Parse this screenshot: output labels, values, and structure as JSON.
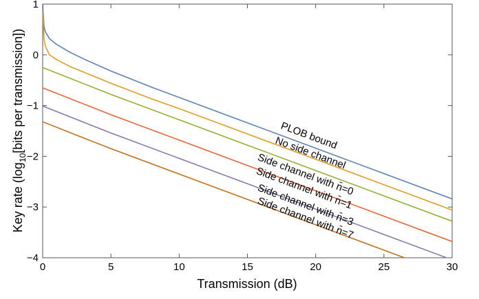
{
  "chart_data": {
    "type": "line",
    "title": "",
    "xlabel": "Transmission (dB)",
    "ylabel": "Key rate (log",
    "ylabel_sub": "10",
    "ylabel_tail": "[bits per transmission])",
    "xlim": [
      0,
      30
    ],
    "ylim": [
      -4,
      1
    ],
    "x_ticks": [
      0,
      5,
      10,
      15,
      20,
      25,
      30
    ],
    "x_tick_labels": [
      "0",
      "5",
      "10",
      "15",
      "20",
      "25",
      "30"
    ],
    "y_ticks": [
      -4,
      -3,
      -2,
      -1,
      0,
      1
    ],
    "y_tick_labels": [
      "−4",
      "−3",
      "−2",
      "−1",
      "0",
      "1"
    ],
    "grid": false,
    "series": [
      {
        "name": "PLOB bound",
        "color": "#5e81b5",
        "x": [
          0,
          0.1,
          0.2,
          0.5,
          1,
          2,
          3,
          5,
          8,
          10,
          15,
          20,
          25,
          30
        ],
        "y": [
          1,
          0.56,
          0.45,
          0.32,
          0.21,
          0.05,
          -0.08,
          -0.32,
          -0.64,
          -0.84,
          -1.34,
          -1.84,
          -2.34,
          -2.84
        ]
      },
      {
        "name": "No side channel",
        "color": "#e19c24",
        "x": [
          0,
          0.1,
          0.2,
          0.5,
          1,
          2,
          3,
          5,
          8,
          10,
          15,
          20,
          25,
          30
        ],
        "y": [
          0.87,
          0.3,
          0.17,
          0.0,
          -0.09,
          -0.23,
          -0.34,
          -0.56,
          -0.87,
          -1.06,
          -1.56,
          -2.06,
          -2.56,
          -3.06
        ]
      },
      {
        "name": "Side channel with n̄=0",
        "color": "#8fb032",
        "x": [
          0,
          5,
          10,
          15,
          20,
          25,
          30
        ],
        "y": [
          -0.25,
          -0.78,
          -1.28,
          -1.78,
          -2.28,
          -2.78,
          -3.28
        ]
      },
      {
        "name": "Side channel with n̄=1",
        "color": "#eb6235",
        "x": [
          0,
          5,
          10,
          15,
          20,
          25,
          30
        ],
        "y": [
          -0.65,
          -1.18,
          -1.68,
          -2.18,
          -2.68,
          -3.18,
          -3.68
        ]
      },
      {
        "name": "Side channel with n̄=3",
        "color": "#8778b3",
        "x": [
          0,
          5,
          10,
          15,
          20,
          25,
          30
        ],
        "y": [
          -1.01,
          -1.54,
          -2.04,
          -2.54,
          -3.04,
          -3.54,
          -4.04
        ]
      },
      {
        "name": "Side channel with n̄=7",
        "color": "#c56e1a",
        "x": [
          0,
          5,
          10,
          15,
          20,
          25,
          30
        ],
        "y": [
          -1.32,
          -1.85,
          -2.35,
          -2.85,
          -3.35,
          -3.85,
          -4.35
        ]
      }
    ],
    "curve_labels": [
      {
        "text": "PLOB bound",
        "x": 17.4,
        "y": -1.45,
        "angle_data_slope": -0.1
      },
      {
        "text": "No side channel",
        "x": 17.0,
        "y": -1.74,
        "angle_data_slope": -0.1
      },
      {
        "text": "Side channel with n̄=0",
        "x": 15.7,
        "y": -2.07,
        "angle_data_slope": -0.1
      },
      {
        "text": "Side channel with n̄=1",
        "x": 15.6,
        "y": -2.34,
        "angle_data_slope": -0.1
      },
      {
        "text": "Side channel with n̄=3",
        "x": 15.7,
        "y": -2.67,
        "angle_data_slope": -0.1
      },
      {
        "text": "Side channel with n̄=7",
        "x": 15.7,
        "y": -2.93,
        "angle_data_slope": -0.1
      }
    ]
  }
}
